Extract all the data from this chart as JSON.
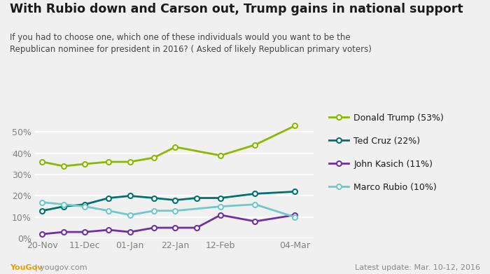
{
  "title": "With Rubio down and Carson out, Trump gains in national support",
  "subtitle": "If you had to choose one, which one of these individuals would you want to be the\nRepublican nominee for president in 2016? ( Asked of likely Republican primary voters)",
  "trump_x": [
    0,
    0.8,
    1.6,
    2.5,
    3.3,
    4.2,
    5.0,
    6.7,
    8.0,
    9.5
  ],
  "trump_y": [
    36,
    34,
    35,
    36,
    36,
    38,
    43,
    39,
    44,
    53
  ],
  "cruz_x": [
    0,
    0.8,
    1.6,
    2.5,
    3.3,
    4.2,
    5.0,
    5.8,
    6.7,
    8.0,
    9.5
  ],
  "cruz_y": [
    13,
    15,
    16,
    19,
    20,
    19,
    18,
    19,
    19,
    21,
    22
  ],
  "kasich_x": [
    0,
    0.8,
    1.6,
    2.5,
    3.3,
    4.2,
    5.0,
    5.8,
    6.7,
    8.0,
    9.5
  ],
  "kasich_y": [
    2,
    3,
    3,
    4,
    3,
    5,
    5,
    5,
    11,
    8,
    11
  ],
  "rubio_x": [
    0,
    0.8,
    1.6,
    2.5,
    3.3,
    4.2,
    5.0,
    6.7,
    8.0,
    9.5
  ],
  "rubio_y": [
    17,
    16,
    15,
    13,
    11,
    13,
    13,
    15,
    16,
    10
  ],
  "trump_color": "#8cb800",
  "cruz_color": "#007070",
  "kasich_color": "#7030a0",
  "rubio_color": "#70c8c8",
  "bg_color": "#f0f0f0",
  "grid_color": "#ffffff",
  "tick_color": "#808080",
  "title_color": "#1a1a1a",
  "subtitle_color": "#444444",
  "footer_right": "Latest update: Mar. 10-12, 2016",
  "legend_labels": [
    "Donald Trump (53%)",
    "Ted Cruz (22%)",
    "John Kasich (11%)",
    "Marco Rubio (10%)"
  ],
  "x_tick_pos": [
    0,
    1.6,
    3.3,
    5.0,
    6.7,
    9.5
  ],
  "x_tick_labels": [
    "20-Nov",
    "11-Dec",
    "01-Jan",
    "22-Jan",
    "12-Feb",
    "04-Mar"
  ],
  "ylim": [
    0,
    58
  ],
  "yticks": [
    0,
    10,
    20,
    30,
    40,
    50
  ]
}
